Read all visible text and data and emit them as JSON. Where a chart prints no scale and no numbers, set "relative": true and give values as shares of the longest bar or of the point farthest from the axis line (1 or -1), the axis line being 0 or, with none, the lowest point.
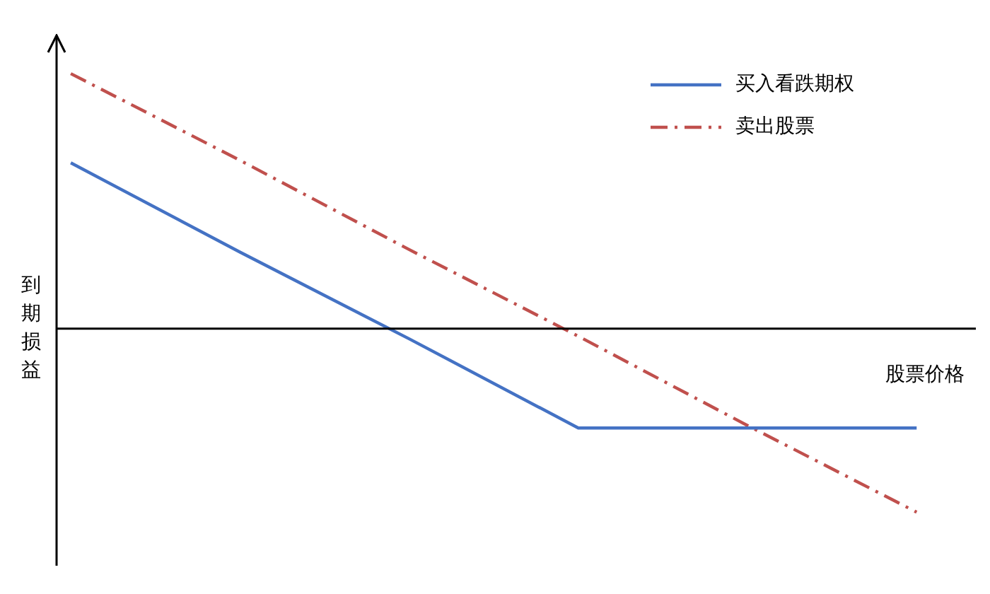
{
  "chart_data": {
    "type": "line",
    "relative": true,
    "xlabel": "股票价格",
    "ylabel": "到期损益",
    "categories": [
      null,
      null,
      null,
      null,
      null,
      null
    ],
    "series": [
      {
        "name": "买入看跌期权",
        "color": "#4472c4",
        "values": [
          0.65,
          0.3,
          -0.04,
          -0.39,
          -0.39,
          -0.39
        ],
        "line_style": "solid"
      },
      {
        "name": "卖出股票",
        "color": "#c0504d",
        "values": [
          1,
          0.66,
          0.31,
          -0.03,
          -0.38,
          -0.72
        ],
        "line_style": "dashed"
      }
    ],
    "legend": "top right",
    "marker": "none"
  }
}
